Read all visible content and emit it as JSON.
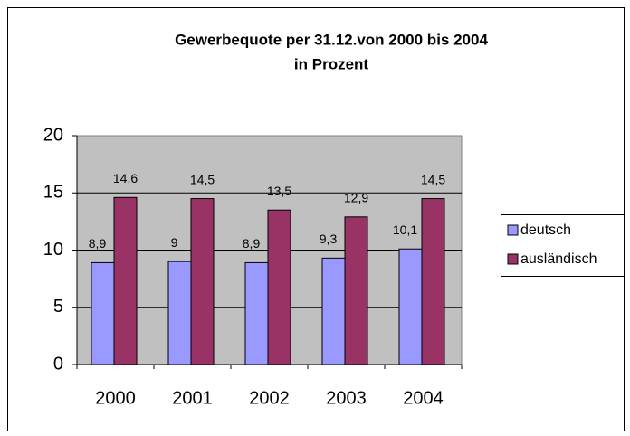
{
  "chart_data": {
    "type": "bar",
    "title": "Gewerbequote per 31.12.von 2000 bis 2004",
    "subtitle": "in Prozent",
    "categories": [
      "2000",
      "2001",
      "2002",
      "2003",
      "2004"
    ],
    "series": [
      {
        "name": "deutsch",
        "color": "#9999ff",
        "values": [
          8.9,
          9,
          8.9,
          9.3,
          10.1
        ],
        "value_labels": [
          "8,9",
          "9",
          "8,9",
          "9,3",
          "10,1"
        ]
      },
      {
        "name": "ausländisch",
        "color": "#993366",
        "values": [
          14.6,
          14.5,
          13.5,
          12.9,
          14.5
        ],
        "value_labels": [
          "14,6",
          "14,5",
          "13,5",
          "12,9",
          "14,5"
        ]
      }
    ],
    "ylim": [
      0,
      20
    ],
    "yticks": [
      0,
      5,
      10,
      15,
      20
    ],
    "grid": true,
    "legend": "right"
  }
}
